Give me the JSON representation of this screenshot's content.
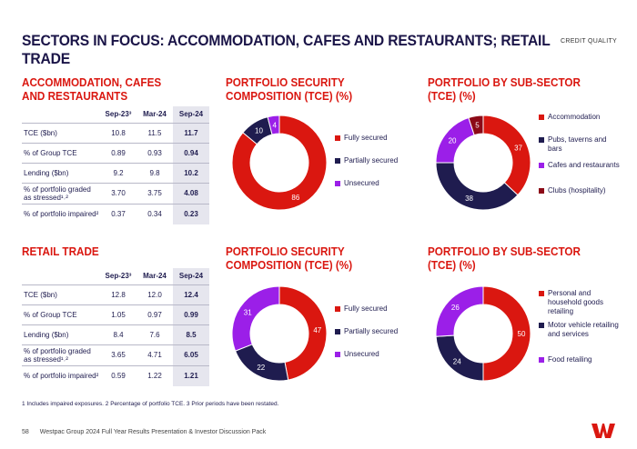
{
  "header": {
    "title": "SECTORS IN FOCUS: ACCOMMODATION, CAFES AND RESTAURANTS; RETAIL TRADE",
    "badge": "CREDIT QUALITY"
  },
  "colors": {
    "red": "#da1710",
    "navy": "#1f1c4f",
    "purple": "#9b1fe8",
    "darkred": "#8c0a17",
    "highlight": "#e6e6ee"
  },
  "accommodation": {
    "title": "ACCOMMODATION, CAFES AND RESTAURANTS",
    "columns": [
      "Sep-23³",
      "Mar-24",
      "Sep-24"
    ],
    "rows": [
      {
        "label": "TCE ($bn)",
        "values": [
          "10.8",
          "11.5",
          "11.7"
        ]
      },
      {
        "label": "% of Group TCE",
        "values": [
          "0.89",
          "0.93",
          "0.94"
        ]
      },
      {
        "label": "Lending ($bn)",
        "values": [
          "9.2",
          "9.8",
          "10.2"
        ]
      },
      {
        "label": "% of portfolio graded as stressed¹˒²",
        "values": [
          "3.70",
          "3.75",
          "4.08"
        ]
      },
      {
        "label": "% of portfolio impaired²",
        "values": [
          "0.37",
          "0.34",
          "0.23"
        ]
      }
    ]
  },
  "retail": {
    "title": "RETAIL TRADE",
    "columns": [
      "Sep-23³",
      "Mar-24",
      "Sep-24"
    ],
    "rows": [
      {
        "label": "TCE ($bn)",
        "values": [
          "12.8",
          "12.0",
          "12.4"
        ]
      },
      {
        "label": "% of Group TCE",
        "values": [
          "1.05",
          "0.97",
          "0.99"
        ]
      },
      {
        "label": "Lending ($bn)",
        "values": [
          "8.4",
          "7.6",
          "8.5"
        ]
      },
      {
        "label": "% of portfolio graded as stressed¹˒²",
        "values": [
          "3.65",
          "4.71",
          "6.05"
        ]
      },
      {
        "label": "% of portfolio impaired²",
        "values": [
          "0.59",
          "1.22",
          "1.21"
        ]
      }
    ]
  },
  "chart_data": [
    {
      "type": "pie",
      "title": "PORTFOLIO SECURITY COMPOSITION (TCE) (%)",
      "categories": [
        "Fully secured",
        "Partially secured",
        "Unsecured"
      ],
      "values": [
        86,
        10,
        4
      ],
      "colors": [
        "#da1710",
        "#1f1c4f",
        "#9b1fe8"
      ]
    },
    {
      "type": "pie",
      "title": "PORTFOLIO BY SUB-SECTOR (TCE) (%)",
      "categories": [
        "Accommodation",
        "Pubs, taverns and bars",
        "Cafes and restaurants",
        "Clubs (hospitality)"
      ],
      "values": [
        37,
        38,
        20,
        5
      ],
      "colors": [
        "#da1710",
        "#1f1c4f",
        "#9b1fe8",
        "#8c0a17"
      ]
    },
    {
      "type": "pie",
      "title": "PORTFOLIO SECURITY COMPOSITION (TCE) (%)",
      "categories": [
        "Fully secured",
        "Partially secured",
        "Unsecured"
      ],
      "values": [
        47,
        22,
        31
      ],
      "colors": [
        "#da1710",
        "#1f1c4f",
        "#9b1fe8"
      ]
    },
    {
      "type": "pie",
      "title": "PORTFOLIO BY SUB-SECTOR (TCE) (%)",
      "categories": [
        "Personal and household goods retailing",
        "Motor vehicle retailing and services",
        "Food retailing"
      ],
      "values": [
        50,
        24,
        26
      ],
      "colors": [
        "#da1710",
        "#1f1c4f",
        "#9b1fe8"
      ]
    }
  ],
  "footnote": "1 Includes impaired exposures. 2 Percentage of portfolio TCE. 3 Prior periods have been restated.",
  "footer": {
    "page": "58",
    "text": "Westpac Group 2024 Full Year Results Presentation & Investor Discussion Pack"
  }
}
